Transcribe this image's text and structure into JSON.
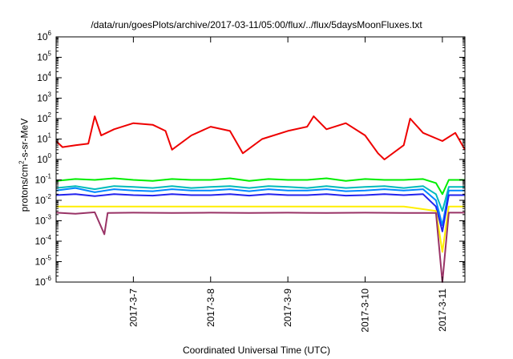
{
  "chart_data": {
    "type": "line",
    "title": "/data/run/goesPlots/archive/2017-03-11/05:00/flux/../flux/5daysMoonFluxes.txt",
    "xlabel": "Coordinated Universal Time (UTC)",
    "ylabel": {
      "pre": "protons/cm",
      "sup": "2",
      "post": "-s-sr-MeV"
    },
    "y_scale": "log",
    "ylim": [
      1e-06,
      1000000.0
    ],
    "xlim": [
      "2017-03-06 00:00",
      "2017-03-11 07:00"
    ],
    "grid": false,
    "legend": "none",
    "y_ticks": [
      {
        "base": "10",
        "exp": "-6",
        "value": 1e-06
      },
      {
        "base": "10",
        "exp": "-5",
        "value": 1e-05
      },
      {
        "base": "10",
        "exp": "-4",
        "value": 0.0001
      },
      {
        "base": "10",
        "exp": "-3",
        "value": 0.001
      },
      {
        "base": "10",
        "exp": "-2",
        "value": 0.01
      },
      {
        "base": "10",
        "exp": "-1",
        "value": 0.1
      },
      {
        "base": "10",
        "exp": "0",
        "value": 1
      },
      {
        "base": "10",
        "exp": "1",
        "value": 10
      },
      {
        "base": "10",
        "exp": "2",
        "value": 100
      },
      {
        "base": "10",
        "exp": "3",
        "value": 1000
      },
      {
        "base": "10",
        "exp": "4",
        "value": 10000
      },
      {
        "base": "10",
        "exp": "5",
        "value": 100000
      },
      {
        "base": "10",
        "exp": "6",
        "value": 1000000
      }
    ],
    "x_ticks": [
      {
        "label": "2017-3-7",
        "value": "2017-03-07 00:00"
      },
      {
        "label": "2017-3-8",
        "value": "2017-03-08 00:00"
      },
      {
        "label": "2017-3-9",
        "value": "2017-03-09 00:00"
      },
      {
        "label": "2017-3-10",
        "value": "2017-03-10 00:00"
      },
      {
        "label": "2017-3-11",
        "value": "2017-03-11 00:00"
      }
    ],
    "series": [
      {
        "color": "#00ee00",
        "values": [
          [
            "2017-03-06 00:00",
            0.09
          ],
          [
            "2017-03-06 06:00",
            0.11
          ],
          [
            "2017-03-06 12:00",
            0.1
          ],
          [
            "2017-03-06 18:00",
            0.12
          ],
          [
            "2017-03-07 00:00",
            0.1
          ],
          [
            "2017-03-07 06:00",
            0.09
          ],
          [
            "2017-03-07 12:00",
            0.11
          ],
          [
            "2017-03-07 18:00",
            0.1
          ],
          [
            "2017-03-08 00:00",
            0.1
          ],
          [
            "2017-03-08 06:00",
            0.12
          ],
          [
            "2017-03-08 12:00",
            0.09
          ],
          [
            "2017-03-08 18:00",
            0.11
          ],
          [
            "2017-03-09 00:00",
            0.1
          ],
          [
            "2017-03-09 06:00",
            0.1
          ],
          [
            "2017-03-09 12:00",
            0.12
          ],
          [
            "2017-03-09 18:00",
            0.09
          ],
          [
            "2017-03-10 00:00",
            0.11
          ],
          [
            "2017-03-10 06:00",
            0.1
          ],
          [
            "2017-03-10 12:00",
            0.1
          ],
          [
            "2017-03-10 18:00",
            0.11
          ],
          [
            "2017-03-10 22:00",
            0.07
          ],
          [
            "2017-03-11 00:00",
            0.02
          ],
          [
            "2017-03-11 02:00",
            0.1
          ],
          [
            "2017-03-11 07:00",
            0.1
          ]
        ]
      },
      {
        "color": "#00bbbb",
        "values": [
          [
            "2017-03-06 00:00",
            0.04
          ],
          [
            "2017-03-06 06:00",
            0.05
          ],
          [
            "2017-03-06 12:00",
            0.035
          ],
          [
            "2017-03-06 18:00",
            0.05
          ],
          [
            "2017-03-07 00:00",
            0.045
          ],
          [
            "2017-03-07 06:00",
            0.04
          ],
          [
            "2017-03-07 12:00",
            0.05
          ],
          [
            "2017-03-07 18:00",
            0.04
          ],
          [
            "2017-03-08 00:00",
            0.045
          ],
          [
            "2017-03-08 06:00",
            0.05
          ],
          [
            "2017-03-08 12:00",
            0.04
          ],
          [
            "2017-03-08 18:00",
            0.05
          ],
          [
            "2017-03-09 00:00",
            0.045
          ],
          [
            "2017-03-09 06:00",
            0.04
          ],
          [
            "2017-03-09 12:00",
            0.05
          ],
          [
            "2017-03-09 18:00",
            0.04
          ],
          [
            "2017-03-10 00:00",
            0.045
          ],
          [
            "2017-03-10 06:00",
            0.05
          ],
          [
            "2017-03-10 12:00",
            0.04
          ],
          [
            "2017-03-10 18:00",
            0.05
          ],
          [
            "2017-03-10 22:00",
            0.02
          ],
          [
            "2017-03-11 00:00",
            0.003
          ],
          [
            "2017-03-11 02:00",
            0.045
          ],
          [
            "2017-03-11 07:00",
            0.045
          ]
        ]
      },
      {
        "color": "#0088ff",
        "values": [
          [
            "2017-03-06 00:00",
            0.03
          ],
          [
            "2017-03-06 06:00",
            0.04
          ],
          [
            "2017-03-06 12:00",
            0.025
          ],
          [
            "2017-03-06 18:00",
            0.035
          ],
          [
            "2017-03-07 00:00",
            0.03
          ],
          [
            "2017-03-07 06:00",
            0.028
          ],
          [
            "2017-03-07 12:00",
            0.035
          ],
          [
            "2017-03-07 18:00",
            0.03
          ],
          [
            "2017-03-08 00:00",
            0.03
          ],
          [
            "2017-03-08 06:00",
            0.035
          ],
          [
            "2017-03-08 12:00",
            0.028
          ],
          [
            "2017-03-08 18:00",
            0.035
          ],
          [
            "2017-03-09 00:00",
            0.03
          ],
          [
            "2017-03-09 06:00",
            0.03
          ],
          [
            "2017-03-09 12:00",
            0.035
          ],
          [
            "2017-03-09 18:00",
            0.028
          ],
          [
            "2017-03-10 00:00",
            0.03
          ],
          [
            "2017-03-10 06:00",
            0.035
          ],
          [
            "2017-03-10 12:00",
            0.03
          ],
          [
            "2017-03-10 18:00",
            0.035
          ],
          [
            "2017-03-10 22:00",
            0.01
          ],
          [
            "2017-03-11 00:00",
            0.0006
          ],
          [
            "2017-03-11 02:00",
            0.03
          ],
          [
            "2017-03-11 07:00",
            0.03
          ]
        ]
      },
      {
        "color": "#2222ee",
        "values": [
          [
            "2017-03-06 00:00",
            0.018
          ],
          [
            "2017-03-06 06:00",
            0.02
          ],
          [
            "2017-03-06 12:00",
            0.016
          ],
          [
            "2017-03-06 18:00",
            0.02
          ],
          [
            "2017-03-07 00:00",
            0.018
          ],
          [
            "2017-03-07 06:00",
            0.017
          ],
          [
            "2017-03-07 12:00",
            0.02
          ],
          [
            "2017-03-07 18:00",
            0.018
          ],
          [
            "2017-03-08 00:00",
            0.018
          ],
          [
            "2017-03-08 06:00",
            0.02
          ],
          [
            "2017-03-08 12:00",
            0.017
          ],
          [
            "2017-03-08 18:00",
            0.02
          ],
          [
            "2017-03-09 00:00",
            0.018
          ],
          [
            "2017-03-09 06:00",
            0.018
          ],
          [
            "2017-03-09 12:00",
            0.02
          ],
          [
            "2017-03-09 18:00",
            0.017
          ],
          [
            "2017-03-10 00:00",
            0.018
          ],
          [
            "2017-03-10 06:00",
            0.02
          ],
          [
            "2017-03-10 12:00",
            0.018
          ],
          [
            "2017-03-10 18:00",
            0.02
          ],
          [
            "2017-03-10 22:00",
            0.005
          ],
          [
            "2017-03-11 00:00",
            0.0003
          ],
          [
            "2017-03-11 02:00",
            0.018
          ],
          [
            "2017-03-11 07:00",
            0.018
          ]
        ]
      },
      {
        "color": "#ffee00",
        "values": [
          [
            "2017-03-06 00:00",
            0.005
          ],
          [
            "2017-03-06 12:00",
            0.005
          ],
          [
            "2017-03-07 00:00",
            0.005
          ],
          [
            "2017-03-07 12:00",
            0.005
          ],
          [
            "2017-03-08 00:00",
            0.005
          ],
          [
            "2017-03-08 12:00",
            0.005
          ],
          [
            "2017-03-09 00:00",
            0.005
          ],
          [
            "2017-03-09 12:00",
            0.005
          ],
          [
            "2017-03-10 00:00",
            0.005
          ],
          [
            "2017-03-10 12:00",
            0.005
          ],
          [
            "2017-03-10 22:00",
            0.003
          ],
          [
            "2017-03-11 00:00",
            3e-05
          ],
          [
            "2017-03-11 02:00",
            0.005
          ],
          [
            "2017-03-11 07:00",
            0.005
          ]
        ]
      },
      {
        "color": "#993366",
        "values": [
          [
            "2017-03-06 00:00",
            0.0025
          ],
          [
            "2017-03-06 06:00",
            0.0022
          ],
          [
            "2017-03-06 12:00",
            0.0026
          ],
          [
            "2017-03-06 15:00",
            0.00022
          ],
          [
            "2017-03-06 16:00",
            0.0024
          ],
          [
            "2017-03-07 00:00",
            0.0025
          ],
          [
            "2017-03-07 12:00",
            0.0024
          ],
          [
            "2017-03-08 00:00",
            0.0025
          ],
          [
            "2017-03-08 12:00",
            0.0024
          ],
          [
            "2017-03-09 00:00",
            0.0025
          ],
          [
            "2017-03-09 12:00",
            0.0024
          ],
          [
            "2017-03-10 00:00",
            0.0025
          ],
          [
            "2017-03-10 12:00",
            0.0024
          ],
          [
            "2017-03-10 22:00",
            0.0024
          ],
          [
            "2017-03-11 00:00",
            1e-06
          ],
          [
            "2017-03-11 02:00",
            0.0025
          ],
          [
            "2017-03-11 07:00",
            0.0025
          ]
        ]
      },
      {
        "color": "#ee0000",
        "values": [
          [
            "2017-03-06 00:00",
            8
          ],
          [
            "2017-03-06 02:00",
            4
          ],
          [
            "2017-03-06 06:00",
            5
          ],
          [
            "2017-03-06 10:00",
            6
          ],
          [
            "2017-03-06 12:00",
            130
          ],
          [
            "2017-03-06 14:00",
            15
          ],
          [
            "2017-03-06 18:00",
            30
          ],
          [
            "2017-03-07 00:00",
            60
          ],
          [
            "2017-03-07 06:00",
            50
          ],
          [
            "2017-03-07 10:00",
            25
          ],
          [
            "2017-03-07 12:00",
            3
          ],
          [
            "2017-03-07 18:00",
            15
          ],
          [
            "2017-03-08 00:00",
            40
          ],
          [
            "2017-03-08 06:00",
            25
          ],
          [
            "2017-03-08 10:00",
            2
          ],
          [
            "2017-03-08 16:00",
            10
          ],
          [
            "2017-03-09 00:00",
            25
          ],
          [
            "2017-03-09 06:00",
            40
          ],
          [
            "2017-03-09 08:00",
            130
          ],
          [
            "2017-03-09 12:00",
            30
          ],
          [
            "2017-03-09 18:00",
            60
          ],
          [
            "2017-03-10 00:00",
            15
          ],
          [
            "2017-03-10 04:00",
            2
          ],
          [
            "2017-03-10 06:00",
            1
          ],
          [
            "2017-03-10 12:00",
            5
          ],
          [
            "2017-03-10 14:00",
            100
          ],
          [
            "2017-03-10 18:00",
            20
          ],
          [
            "2017-03-11 00:00",
            8
          ],
          [
            "2017-03-11 04:00",
            20
          ],
          [
            "2017-03-11 07:00",
            3
          ]
        ]
      }
    ]
  }
}
